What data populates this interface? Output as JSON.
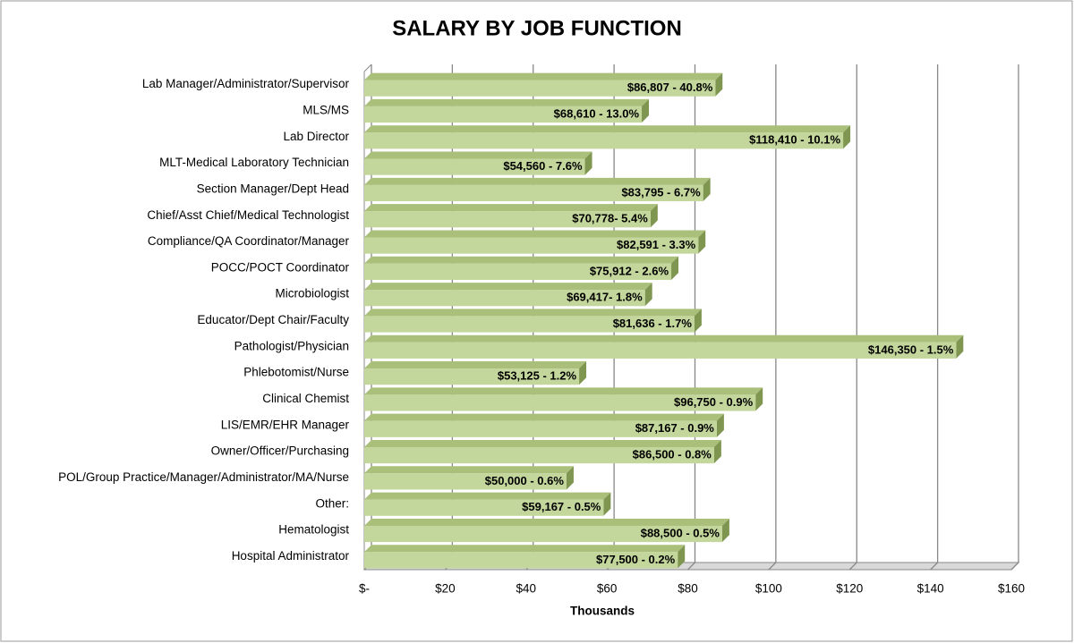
{
  "chart_data": {
    "type": "bar",
    "orientation": "horizontal",
    "title": "SALARY BY JOB FUNCTION",
    "x_label": "Thousands",
    "categories": [
      "Lab Manager/Administrator/Supervisor",
      "MLS/MS",
      "Lab Director",
      "MLT-Medical Laboratory Technician",
      "Section Manager/Dept Head",
      "Chief/Asst Chief/Medical Technologist",
      "Compliance/QA Coordinator/Manager",
      "POCC/POCT Coordinator",
      "Microbiologist",
      "Educator/Dept Chair/Faculty",
      "Pathologist/Physician",
      "Phlebotomist/Nurse",
      "Clinical Chemist",
      "LIS/EMR/EHR Manager",
      "Owner/Officer/Purchasing",
      "POL/Group Practice/Manager/Administrator/MA/Nurse",
      "Other:",
      "Hematologist",
      "Hospital Administrator"
    ],
    "values": [
      86.807,
      68.61,
      118.41,
      54.56,
      83.795,
      70.778,
      82.591,
      75.912,
      69.417,
      81.636,
      146.35,
      53.125,
      96.75,
      87.167,
      86.5,
      50,
      59.167,
      88.5,
      77.5
    ],
    "value_labels": [
      "$86,807 - 40.8%",
      "$68,610 - 13.0%",
      "$118,410 - 10.1%",
      "$54,560 - 7.6%",
      "$83,795 - 6.7%",
      "$70,778- 5.4%",
      "$82,591 - 3.3%",
      "$75,912 - 2.6%",
      "$69,417- 1.8%",
      "$81,636 - 1.7%",
      "$146,350 - 1.5%",
      "$53,125 - 1.2%",
      "$96,750 - 0.9%",
      "$87,167 - 0.9%",
      "$86,500 - 0.8%",
      "$50,000 - 0.6%",
      "$59,167 - 0.5%",
      "$88,500 - 0.5%",
      "$77,500 - 0.2%"
    ],
    "color": "#c3d69b",
    "xlim": [
      0,
      160
    ],
    "xticks": [
      {
        "value": 0,
        "label": "$-"
      },
      {
        "value": 20,
        "label": "$20"
      },
      {
        "value": 40,
        "label": "$40"
      },
      {
        "value": 60,
        "label": "$60"
      },
      {
        "value": 80,
        "label": "$80"
      },
      {
        "value": 100,
        "label": "$100"
      },
      {
        "value": 120,
        "label": "$120"
      },
      {
        "value": 140,
        "label": "$140"
      },
      {
        "value": 160,
        "label": "$160"
      }
    ],
    "grid": true
  }
}
